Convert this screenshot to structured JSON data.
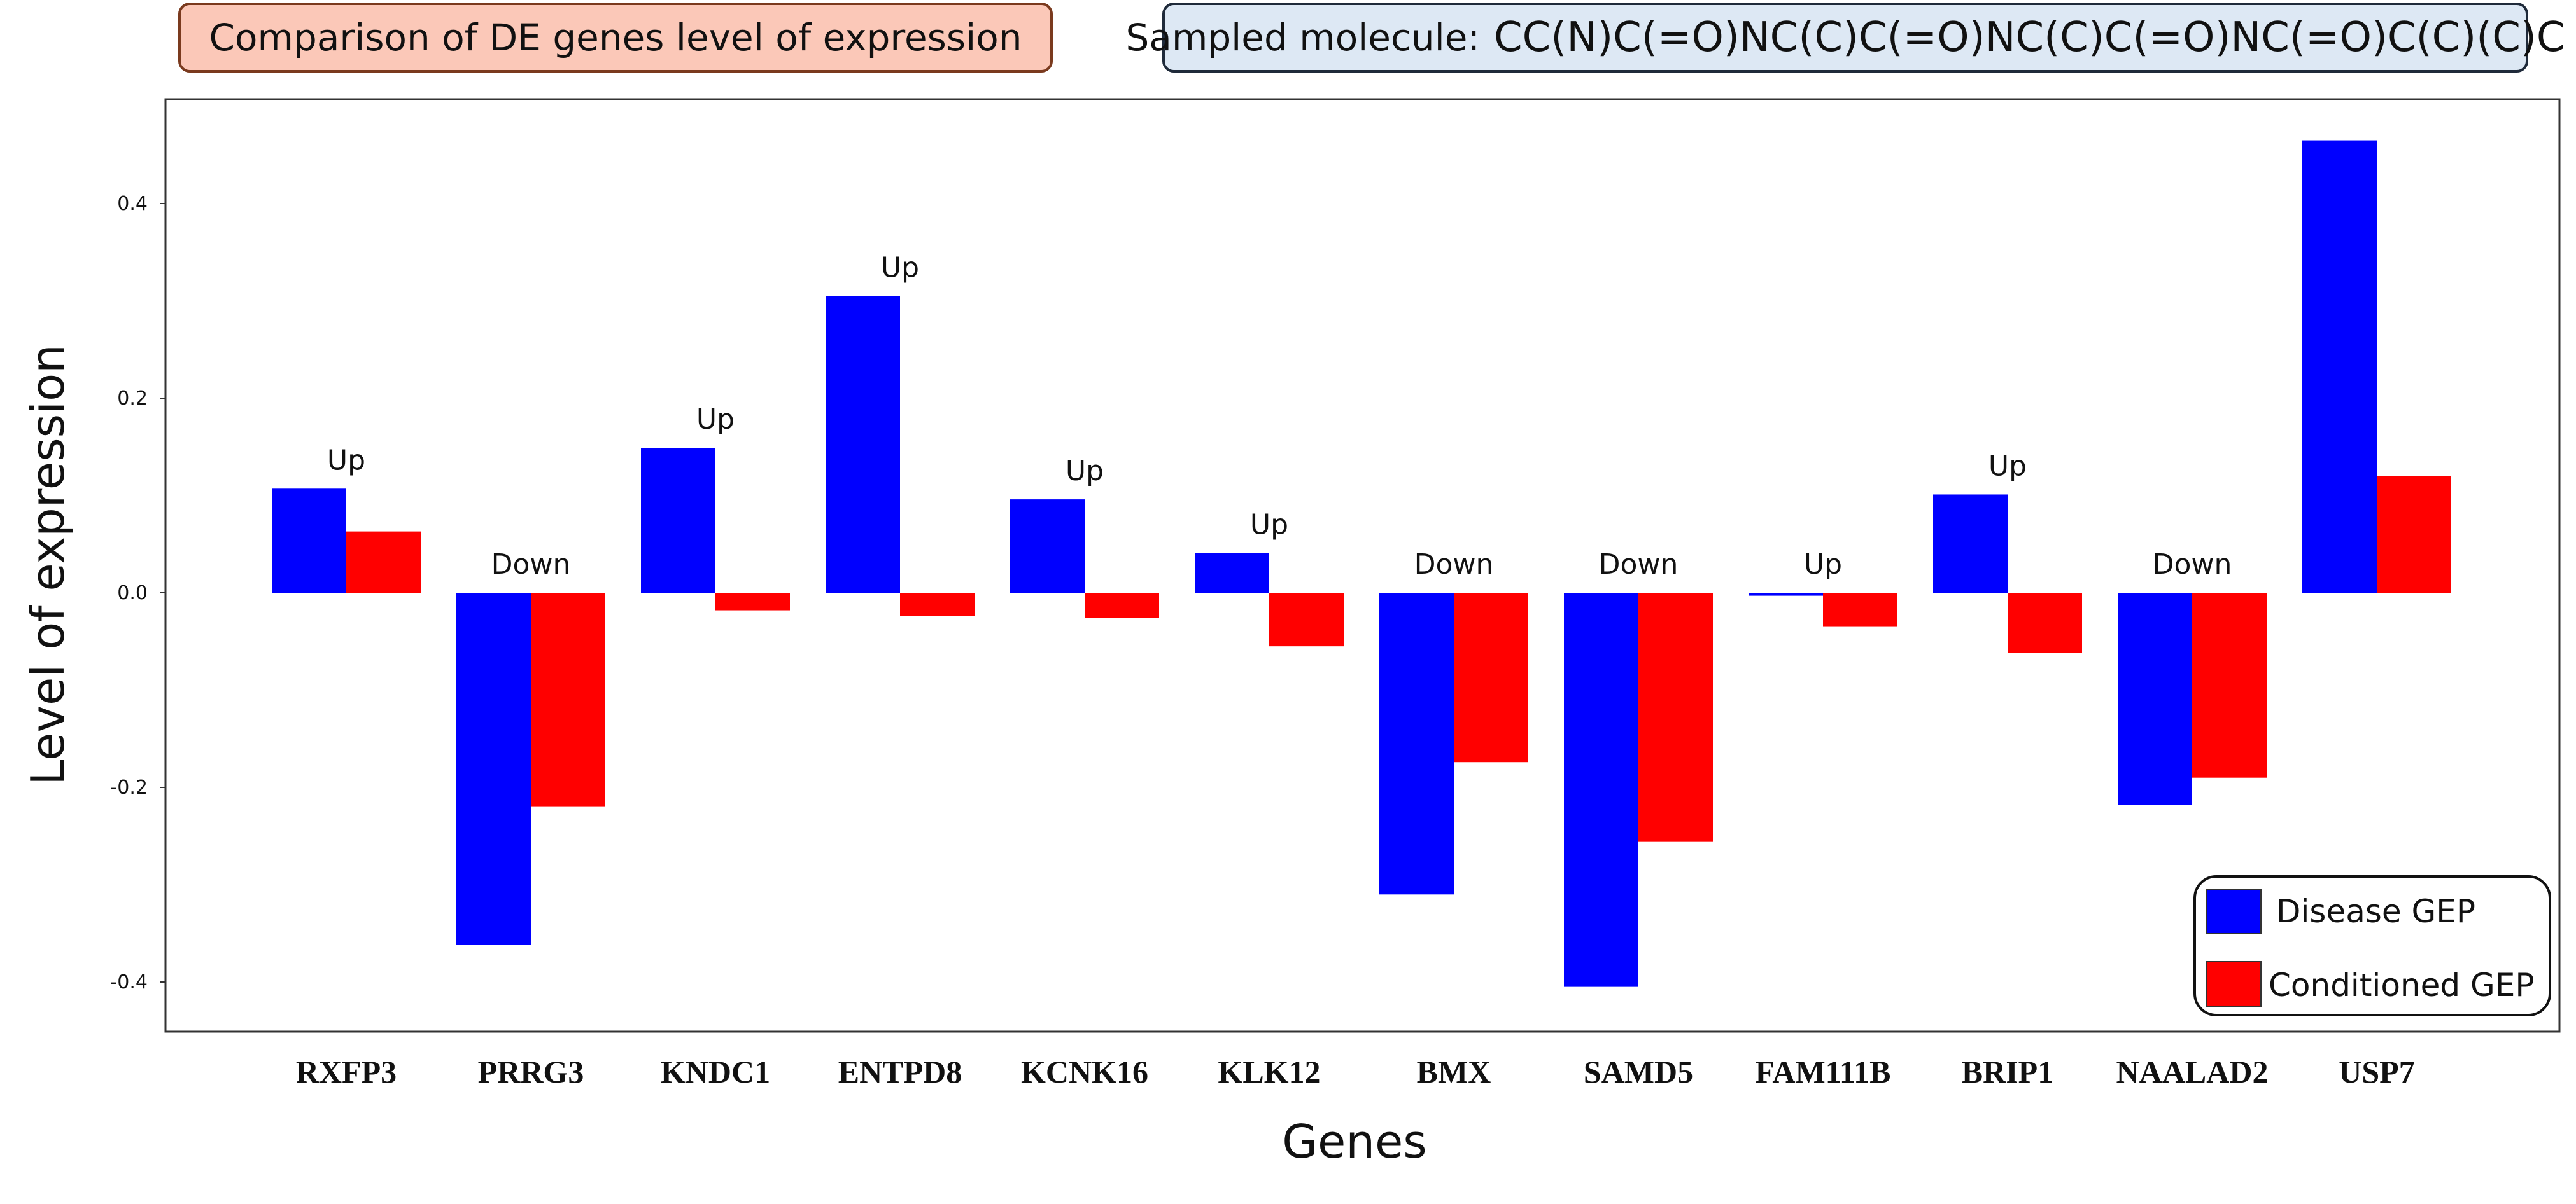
{
  "header": {
    "title": "Comparison of DE genes level of expression",
    "molecule_label": "Sampled molecule:",
    "molecule_smiles": "CC(N)C(=O)NC(C)C(=O)NC(C)C(=O)NC(=O)C(C)(C)C"
  },
  "chart_data": {
    "type": "bar",
    "title": "Comparison of DE genes level of expression",
    "xlabel": "Genes",
    "ylabel": "Level of expression",
    "ylim": [
      -0.448,
      0.5
    ],
    "yticks": [
      -0.4,
      -0.2,
      0.0,
      0.2,
      0.4
    ],
    "ytick_labels": [
      "-0.4",
      "-0.2",
      "0.0",
      "0.2",
      "0.4"
    ],
    "grid": false,
    "legend_position": "bottom-right",
    "categories": [
      "RXFP3",
      "PRRG3",
      "KNDC1",
      "ENTPD8",
      "KCNK16",
      "KLK12",
      "BMX",
      "SAMD5",
      "FAM111B",
      "BRIP1",
      "NAALAD2",
      "USP7"
    ],
    "annotations": [
      "Up",
      "Down",
      "Up",
      "Up",
      "Up",
      "Up",
      "Down",
      "Down",
      "Up",
      "Up",
      "Down",
      ""
    ],
    "series": [
      {
        "name": "Disease GEP",
        "color": "#0000ff",
        "values": [
          0.107,
          -0.362,
          0.149,
          0.305,
          0.096,
          0.041,
          -0.31,
          -0.405,
          -0.003,
          0.101,
          -0.218,
          0.465
        ]
      },
      {
        "name": "Conditioned GEP",
        "color": "#ff0000",
        "values": [
          0.063,
          -0.22,
          -0.018,
          -0.024,
          -0.026,
          -0.055,
          -0.174,
          -0.256,
          -0.035,
          -0.062,
          -0.19,
          0.12
        ]
      }
    ]
  }
}
